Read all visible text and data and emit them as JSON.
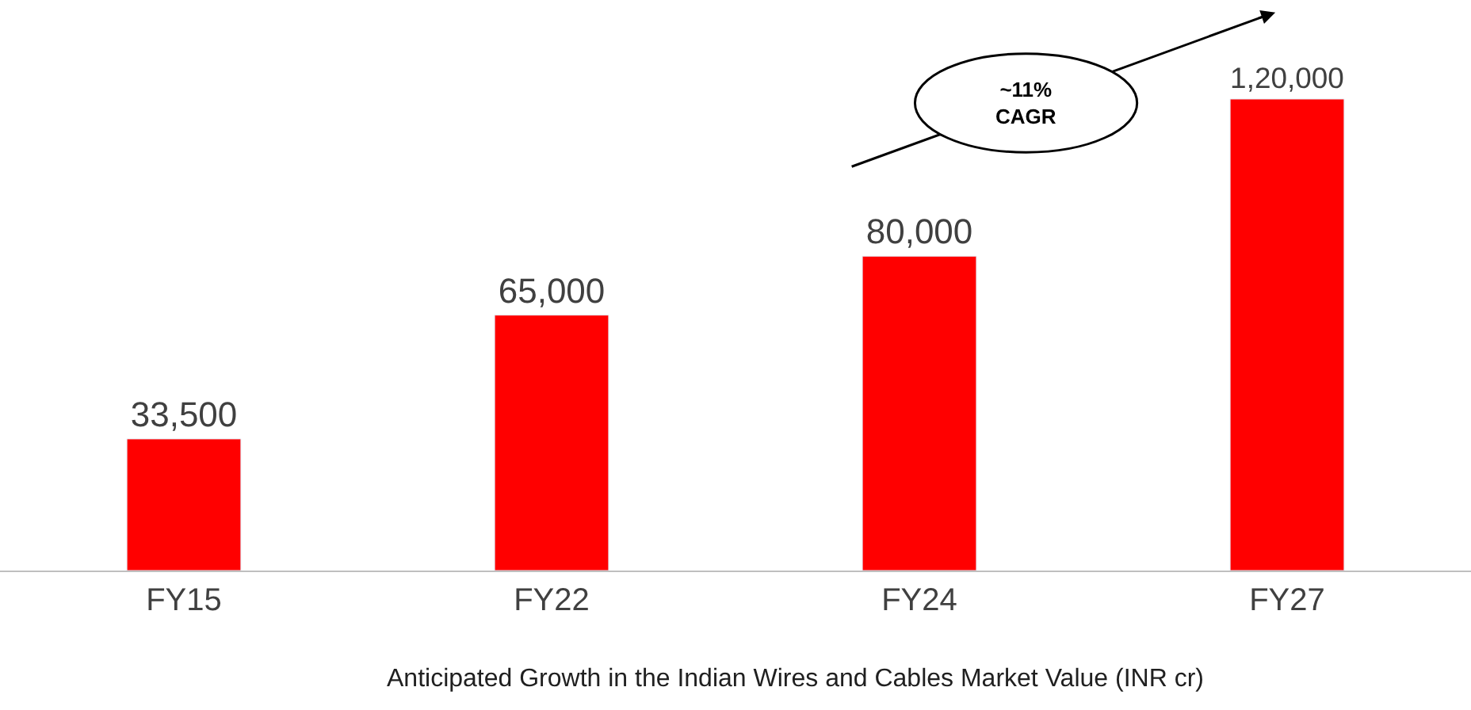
{
  "chart_data": {
    "type": "bar",
    "categories": [
      "FY15",
      "FY22",
      "FY24",
      "FY27"
    ],
    "values": [
      33500,
      65000,
      80000,
      120000
    ],
    "value_labels": [
      "33,500",
      "65,000",
      "80,000",
      "1,20,000"
    ],
    "color": "#ff0000",
    "legend": false,
    "tick_labels": "x",
    "annotations": [
      "~11%\nCAGR",
      "Anticipated Growth in the Indian Wires and Cables Market Value (INR cr)"
    ]
  }
}
